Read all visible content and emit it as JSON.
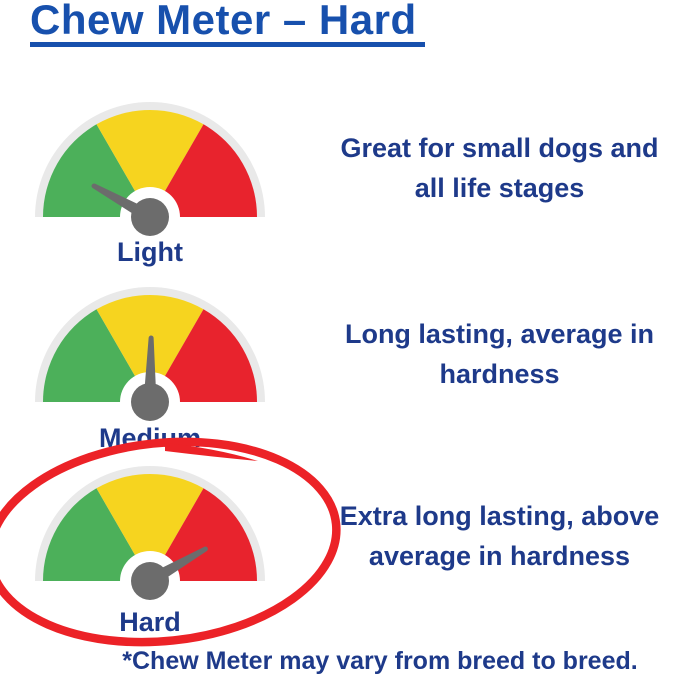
{
  "title": "Chew Meter – Hard",
  "footnote": "*Chew Meter may vary from breed to breed.",
  "colors": {
    "title_blue": "#1750ad",
    "text_navy": "#1e3a8a",
    "gauge_green": "#4cb05a",
    "gauge_yellow": "#f6d41f",
    "gauge_red": "#e8232d",
    "gauge_rim": "#e9e9e9",
    "needle_gray": "#6c6c6c",
    "marker_red": "#ec2227",
    "background": "#ffffff"
  },
  "gauge_segments": [
    "green",
    "yellow",
    "red"
  ],
  "gauges": [
    {
      "id": "light",
      "label": "Light",
      "level": "low",
      "needle_zone": "green",
      "needle_angle": -61,
      "circled": false,
      "description": "Great for small dogs and all life stages",
      "description_lines": [
        "Great for small dogs and",
        "all life stages"
      ]
    },
    {
      "id": "medium",
      "label": "Medium",
      "level": "medium",
      "needle_zone": "yellow",
      "needle_angle": 1,
      "circled": false,
      "description": "Long lasting, average in hardness",
      "description_lines": [
        "Long lasting, average in",
        "hardness"
      ]
    },
    {
      "id": "hard",
      "label": "Hard",
      "level": "high",
      "needle_zone": "red",
      "needle_angle": 60,
      "circled": true,
      "description": "Extra long lasting, above average in hardness",
      "description_lines": [
        "Extra long lasting, above",
        "average in hardness"
      ]
    }
  ]
}
